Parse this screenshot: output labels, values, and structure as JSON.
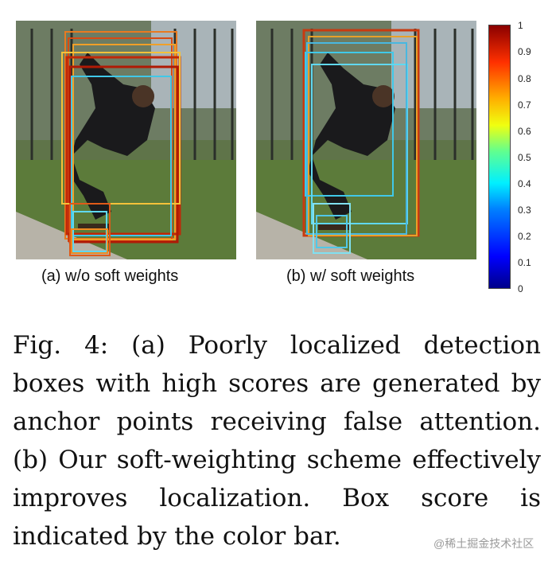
{
  "panels": {
    "a": {
      "label": "(a) w/o soft weights"
    },
    "b": {
      "label": "(b) w/ soft weights"
    }
  },
  "colorbar": {
    "ticks": [
      "1",
      "0.9",
      "0.8",
      "0.7",
      "0.6",
      "0.5",
      "0.4",
      "0.3",
      "0.2",
      "0.1",
      "0"
    ],
    "colors": [
      "#00008a",
      "#0000ff",
      "#0080ff",
      "#00f0ff",
      "#60ff90",
      "#f0ff10",
      "#ffb000",
      "#ff3000",
      "#8a0000"
    ]
  },
  "caption": {
    "text": "Fig. 4: (a) Poorly localized detection boxes with high scores are generated by anchor points receiving false at­tention. (b) Our soft-weighting scheme effectively improves localization. Box score is indicated by the color bar."
  },
  "watermark": "@稀土掘金技术社区"
}
